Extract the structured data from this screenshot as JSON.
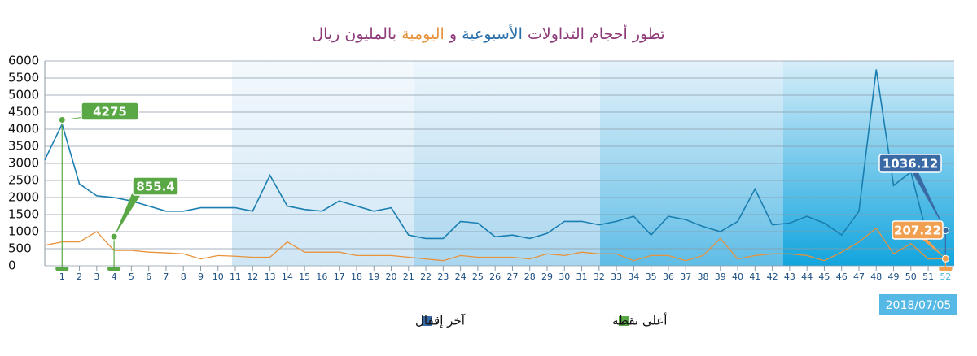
{
  "chart_data": {
    "type": "line",
    "title_parts": [
      {
        "text": "تطور أحجام التداولات",
        "color": "#8e3a78"
      },
      {
        "text": "الأسبوعية",
        "color": "#2a6fa8"
      },
      {
        "text": "و",
        "color": "#8e3a78"
      },
      {
        "text": "اليومية",
        "color": "#e8923a"
      },
      {
        "text": "بالمليون ريال",
        "color": "#8e3a78"
      }
    ],
    "x": [
      0,
      1,
      2,
      3,
      4,
      5,
      6,
      7,
      8,
      9,
      10,
      11,
      12,
      13,
      14,
      15,
      16,
      17,
      18,
      19,
      20,
      21,
      22,
      23,
      24,
      25,
      26,
      27,
      28,
      29,
      30,
      31,
      32,
      33,
      34,
      35,
      36,
      37,
      38,
      39,
      40,
      41,
      42,
      43,
      44,
      45,
      46,
      47,
      48,
      49,
      50,
      51,
      52
    ],
    "series": [
      {
        "color": "#1a7fb0",
        "values": [
          3100,
          4150,
          2400,
          2050,
          2000,
          1900,
          1750,
          1600,
          1600,
          1700,
          1700,
          1700,
          1600,
          2650,
          1750,
          1650,
          1600,
          1900,
          1750,
          1600,
          1700,
          900,
          800,
          800,
          1300,
          1250,
          850,
          900,
          800,
          950,
          1300,
          1300,
          1200,
          1300,
          1450,
          900,
          1450,
          1350,
          1150,
          1000,
          1300,
          2250,
          1200,
          1250,
          1450,
          1250,
          900,
          1600,
          5750,
          2350,
          2750,
          750,
          1036.12
        ]
      },
      {
        "color": "#e8923a",
        "values": [
          600,
          700,
          700,
          1000,
          450,
          450,
          400,
          380,
          350,
          200,
          300,
          280,
          250,
          250,
          700,
          400,
          400,
          400,
          300,
          300,
          300,
          250,
          200,
          150,
          300,
          250,
          250,
          250,
          200,
          350,
          300,
          400,
          350,
          350,
          150,
          300,
          300,
          150,
          300,
          800,
          200,
          300,
          350,
          350,
          300,
          150,
          400,
          700,
          1100,
          350,
          650,
          200,
          207.22
        ]
      }
    ],
    "xlim": [
      0,
      52.5
    ],
    "xticks": [
      1,
      2,
      3,
      4,
      5,
      6,
      7,
      8,
      9,
      10,
      11,
      12,
      13,
      14,
      15,
      16,
      17,
      18,
      19,
      20,
      21,
      22,
      23,
      24,
      25,
      26,
      27,
      28,
      29,
      30,
      31,
      32,
      33,
      34,
      35,
      36,
      37,
      38,
      39,
      40,
      41,
      42,
      43,
      44,
      45,
      46,
      47,
      48,
      49,
      50,
      51,
      52
    ],
    "ylim": [
      0,
      6000
    ],
    "yticks": [
      0,
      500,
      1000,
      1500,
      2000,
      2500,
      3000,
      3500,
      4000,
      4500,
      5000,
      5500,
      6000
    ],
    "grid": true,
    "annotations": [
      {
        "x": 1,
        "value": 4275,
        "color": "#5aa845"
      },
      {
        "x": 4,
        "value": 855.4,
        "color": "#5aa845"
      },
      {
        "x": 52,
        "value": 1036.12,
        "color": "#3a6aa5"
      },
      {
        "x": 52,
        "value": 207.22,
        "color": "#f0a050"
      }
    ],
    "date_label": "2018/07/05",
    "legend": [
      {
        "label": "آخر إقفال",
        "color": "#3a6aa5"
      },
      {
        "label": "أعلى نقطة",
        "color": "#5aa845"
      }
    ]
  }
}
